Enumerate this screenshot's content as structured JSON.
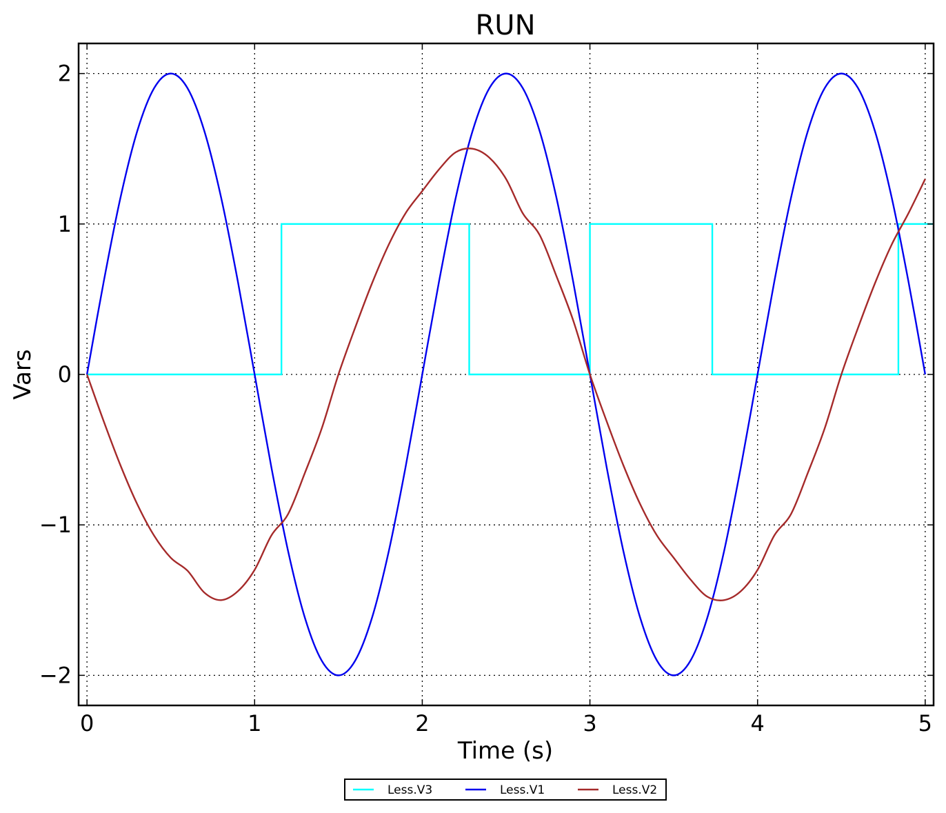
{
  "chart_data": {
    "type": "line",
    "title": "RUN",
    "xlabel": "Time (s)",
    "ylabel": "Vars",
    "xlim": [
      -0.05,
      5.05
    ],
    "ylim": [
      -2.2,
      2.2
    ],
    "x_ticks": [
      0,
      1,
      2,
      3,
      4,
      5
    ],
    "x_tick_labels": [
      "0",
      "1",
      "2",
      "3",
      "4",
      "5"
    ],
    "y_ticks": [
      -2,
      -1,
      0,
      1,
      2
    ],
    "y_tick_labels": [
      "−2",
      "−1",
      "0",
      "1",
      "2"
    ],
    "grid": true,
    "legend_position": "bottom-center, below plot",
    "series": [
      {
        "name": "Less.V3",
        "color": "#00ffff",
        "style": "step",
        "x": [
          0,
          1.16,
          1.16,
          2.28,
          2.28,
          3.0,
          3.0,
          3.73,
          3.73,
          4.84,
          4.84,
          5.05
        ],
        "y": [
          0,
          0,
          1,
          1,
          0,
          0,
          1,
          1,
          0,
          0,
          1,
          1
        ]
      },
      {
        "name": "Less.V1",
        "color": "#0000ee",
        "style": "line",
        "x": [
          0,
          0.1,
          0.2,
          0.3,
          0.4,
          0.5,
          0.6,
          0.7,
          0.8,
          0.9,
          1.0,
          1.1,
          1.2,
          1.3,
          1.4,
          1.5,
          1.6,
          1.7,
          1.8,
          1.9,
          2.0,
          2.1,
          2.2,
          2.3,
          2.4,
          2.5,
          2.6,
          2.7,
          2.8,
          2.9,
          3.0,
          3.1,
          3.2,
          3.3,
          3.4,
          3.5,
          3.6,
          3.7,
          3.8,
          3.9,
          4.0,
          4.1,
          4.2,
          4.3,
          4.4,
          4.5,
          4.6,
          4.7,
          4.8,
          4.9,
          5.0
        ],
        "y": [
          0,
          0.618,
          1.176,
          1.618,
          1.902,
          2.0,
          1.902,
          1.618,
          1.176,
          0.618,
          0,
          -0.618,
          -1.176,
          -1.618,
          -1.902,
          -2.0,
          -1.902,
          -1.618,
          -1.176,
          -0.618,
          0,
          0.618,
          1.176,
          1.618,
          1.902,
          2.0,
          1.902,
          1.618,
          1.176,
          0.618,
          0,
          -0.618,
          -1.176,
          -1.618,
          -1.902,
          -2.0,
          -1.902,
          -1.618,
          -1.176,
          -0.618,
          0,
          0.618,
          1.176,
          1.618,
          1.902,
          2.0,
          1.902,
          1.618,
          1.176,
          0.618,
          0
        ]
      },
      {
        "name": "Less.V2",
        "color": "#a52a2a",
        "style": "line",
        "x": [
          0,
          0.1,
          0.2,
          0.3,
          0.4,
          0.5,
          0.6,
          0.7,
          0.8,
          0.9,
          1.0,
          1.1,
          1.2,
          1.3,
          1.4,
          1.5,
          1.6,
          1.7,
          1.8,
          1.9,
          2.0,
          2.1,
          2.2,
          2.3,
          2.4,
          2.5,
          2.6,
          2.7,
          2.8,
          2.9,
          3.0,
          3.1,
          3.2,
          3.3,
          3.4,
          3.5,
          3.6,
          3.7,
          3.8,
          3.9,
          4.0,
          4.1,
          4.2,
          4.3,
          4.4,
          4.5,
          4.6,
          4.7,
          4.8,
          4.9,
          5.0
        ],
        "y": [
          0,
          -0.312,
          -0.605,
          -0.863,
          -1.071,
          -1.219,
          -1.305,
          -1.45,
          -1.5,
          -1.441,
          -1.299,
          -1.07,
          -0.927,
          -0.654,
          -0.36,
          0,
          0.312,
          0.605,
          0.863,
          1.071,
          1.219,
          1.363,
          1.477,
          1.5,
          1.441,
          1.299,
          1.07,
          0.927,
          0.654,
          0.36,
          0,
          -0.312,
          -0.605,
          -0.863,
          -1.071,
          -1.219,
          -1.363,
          -1.477,
          -1.5,
          -1.441,
          -1.299,
          -1.07,
          -0.927,
          -0.654,
          -0.36,
          0,
          0.312,
          0.605,
          0.863,
          1.071,
          1.299
        ]
      }
    ]
  }
}
